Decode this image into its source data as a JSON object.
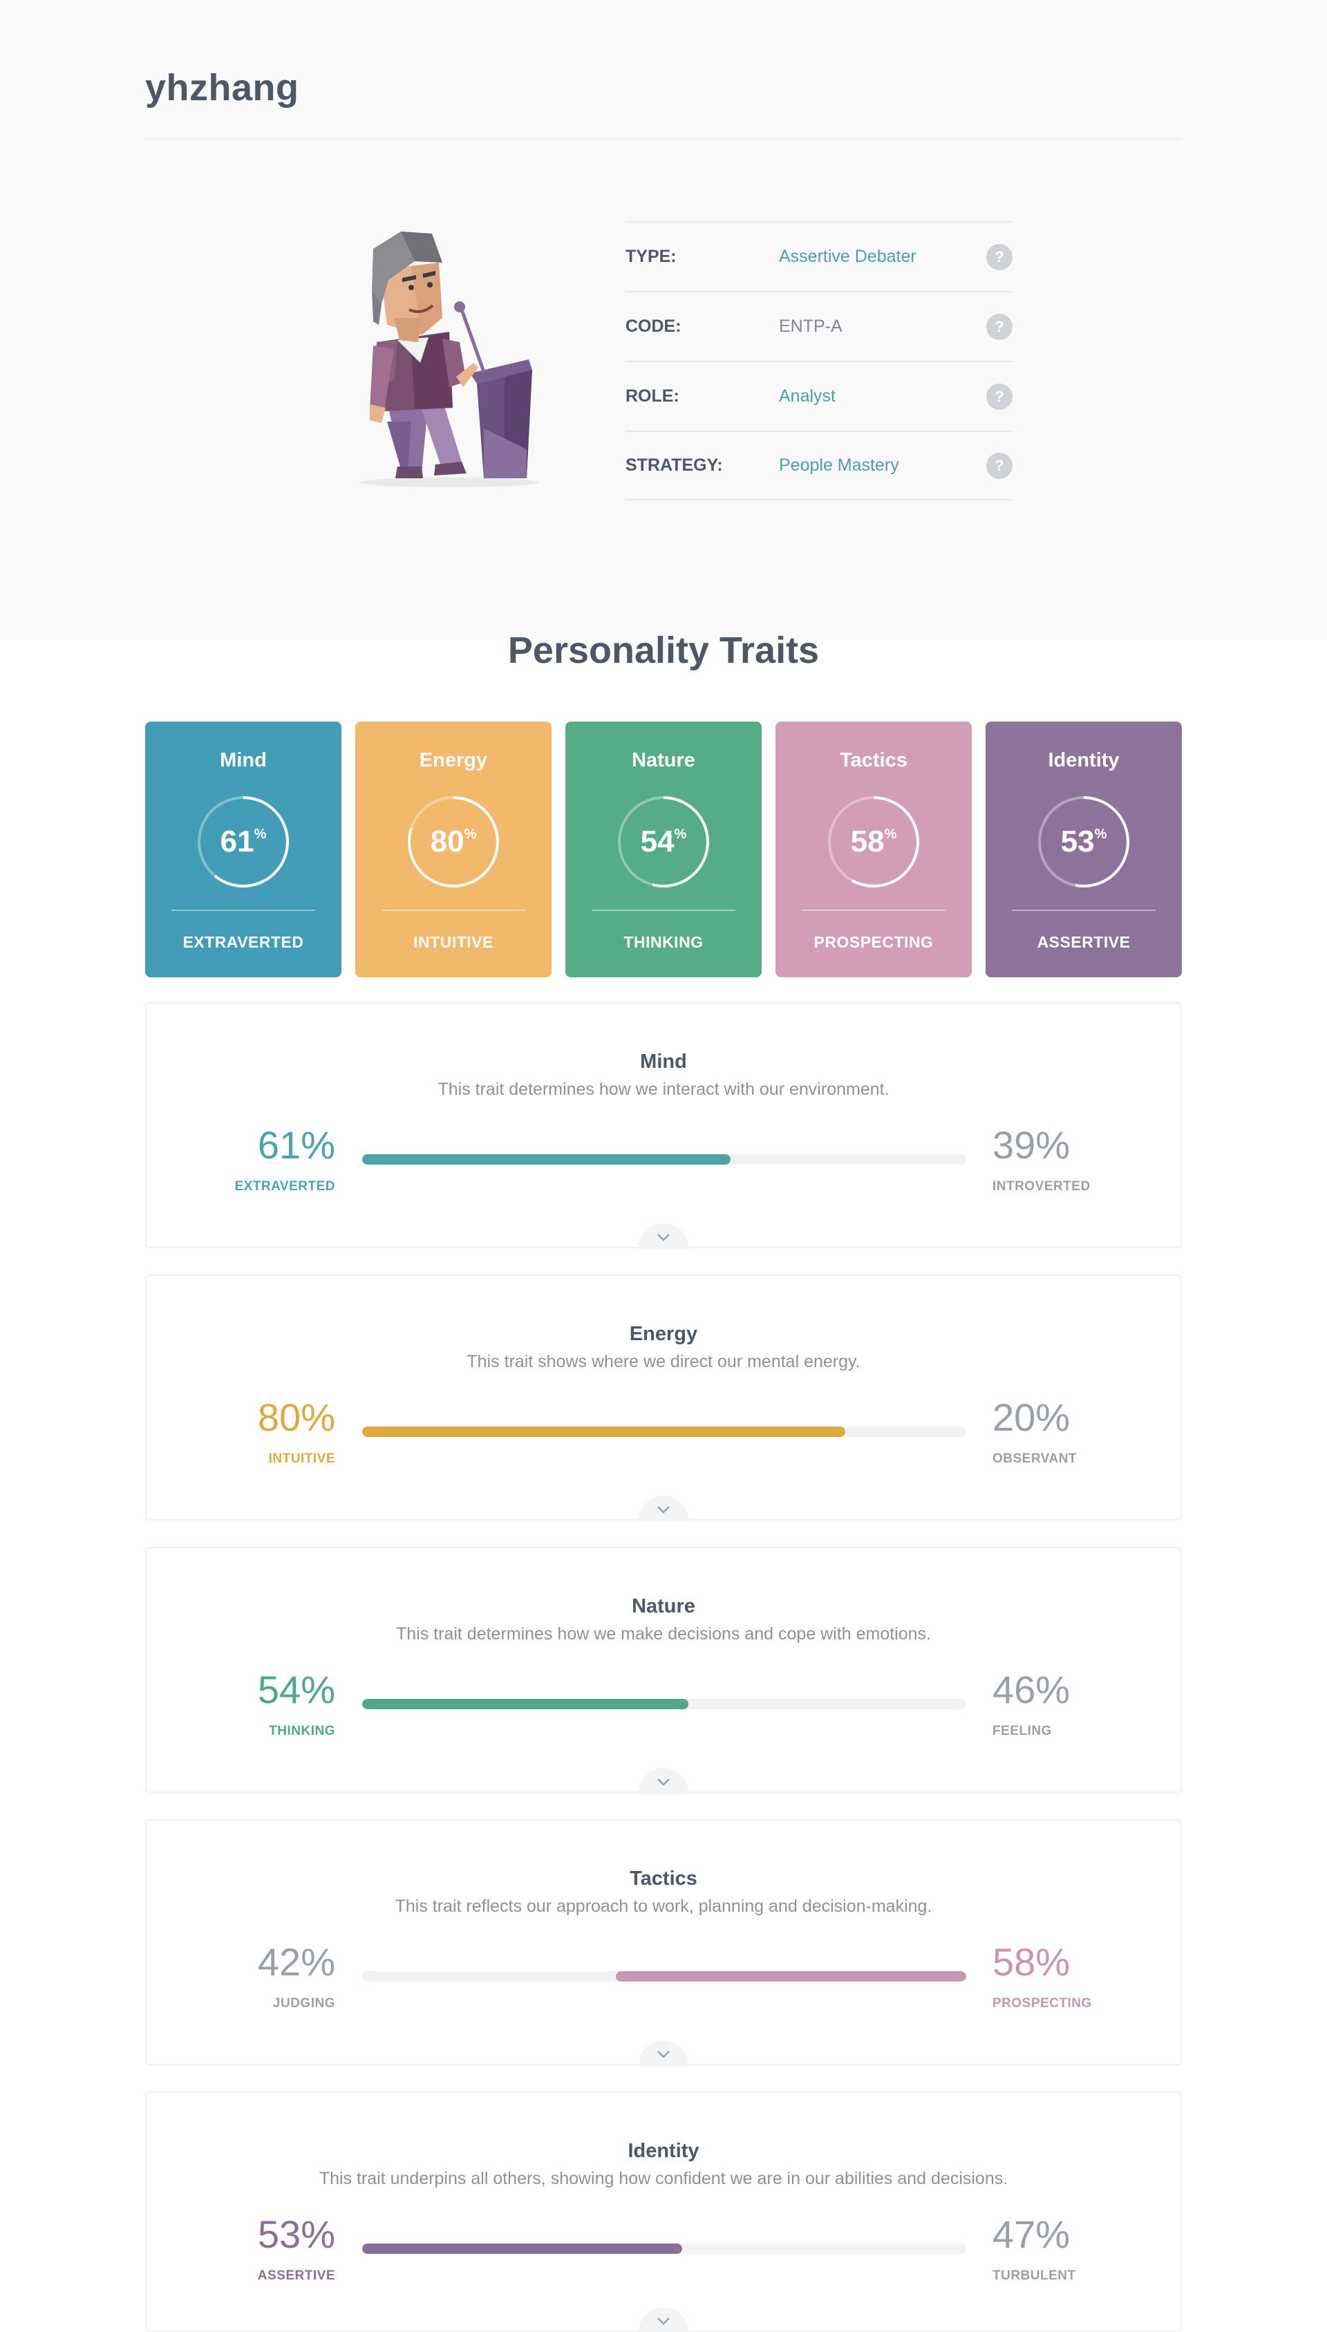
{
  "profile": {
    "username": "yhzhang",
    "info": [
      {
        "label": "TYPE:",
        "value": "Assertive Debater",
        "linked": true
      },
      {
        "label": "CODE:",
        "value": "ENTP-A",
        "linked": false
      },
      {
        "label": "ROLE:",
        "value": "Analyst",
        "linked": true
      },
      {
        "label": "STRATEGY:",
        "value": "People Mastery",
        "linked": true
      }
    ],
    "help_icon": "question-mark-icon",
    "help_glyph": "?",
    "illustration": "debater-character-at-podium"
  },
  "section_title": "Personality Traits",
  "cards": [
    {
      "title": "Mind",
      "value": 61,
      "unit": "%",
      "trait": "EXTRAVERTED",
      "color": "#439db6"
    },
    {
      "title": "Energy",
      "value": 80,
      "unit": "%",
      "trait": "INTUITIVE",
      "color": "#f2b96c"
    },
    {
      "title": "Nature",
      "value": 54,
      "unit": "%",
      "trait": "THINKING",
      "color": "#56ab89"
    },
    {
      "title": "Tactics",
      "value": 58,
      "unit": "%",
      "trait": "PROSPECTING",
      "color": "#d29db7"
    },
    {
      "title": "Identity",
      "value": 53,
      "unit": "%",
      "trait": "ASSERTIVE",
      "color": "#8d7399"
    }
  ],
  "panels": [
    {
      "title": "Mind",
      "description": "This trait determines how we interact with our environment.",
      "left_pct": "61%",
      "left_label": "EXTRAVERTED",
      "right_pct": "39%",
      "right_label": "INTROVERTED",
      "dominant": "left",
      "fill": 0.61,
      "color": "#4aa5a8"
    },
    {
      "title": "Energy",
      "description": "This trait shows where we direct our mental energy.",
      "left_pct": "80%",
      "left_label": "INTUITIVE",
      "right_pct": "20%",
      "right_label": "OBSERVANT",
      "dominant": "left",
      "fill": 0.8,
      "color": "#e0a840"
    },
    {
      "title": "Nature",
      "description": "This trait determines how we make decisions and cope with emotions.",
      "left_pct": "54%",
      "left_label": "THINKING",
      "right_pct": "46%",
      "right_label": "FEELING",
      "dominant": "left",
      "fill": 0.54,
      "color": "#4fa88a"
    },
    {
      "title": "Tactics",
      "description": "This trait reflects our approach to work, planning and decision-making.",
      "left_pct": "42%",
      "left_label": "JUDGING",
      "right_pct": "58%",
      "right_label": "PROSPECTING",
      "dominant": "right",
      "fill": 0.58,
      "color": "#c995b1"
    },
    {
      "title": "Identity",
      "description": "This trait underpins all others, showing how confident we are in our abilities and decisions.",
      "left_pct": "53%",
      "left_label": "ASSERTIVE",
      "right_pct": "47%",
      "right_label": "TURBULENT",
      "dominant": "left",
      "fill": 0.53,
      "color": "#8a6f96"
    }
  ],
  "expand_icon": "chevron-down-icon"
}
